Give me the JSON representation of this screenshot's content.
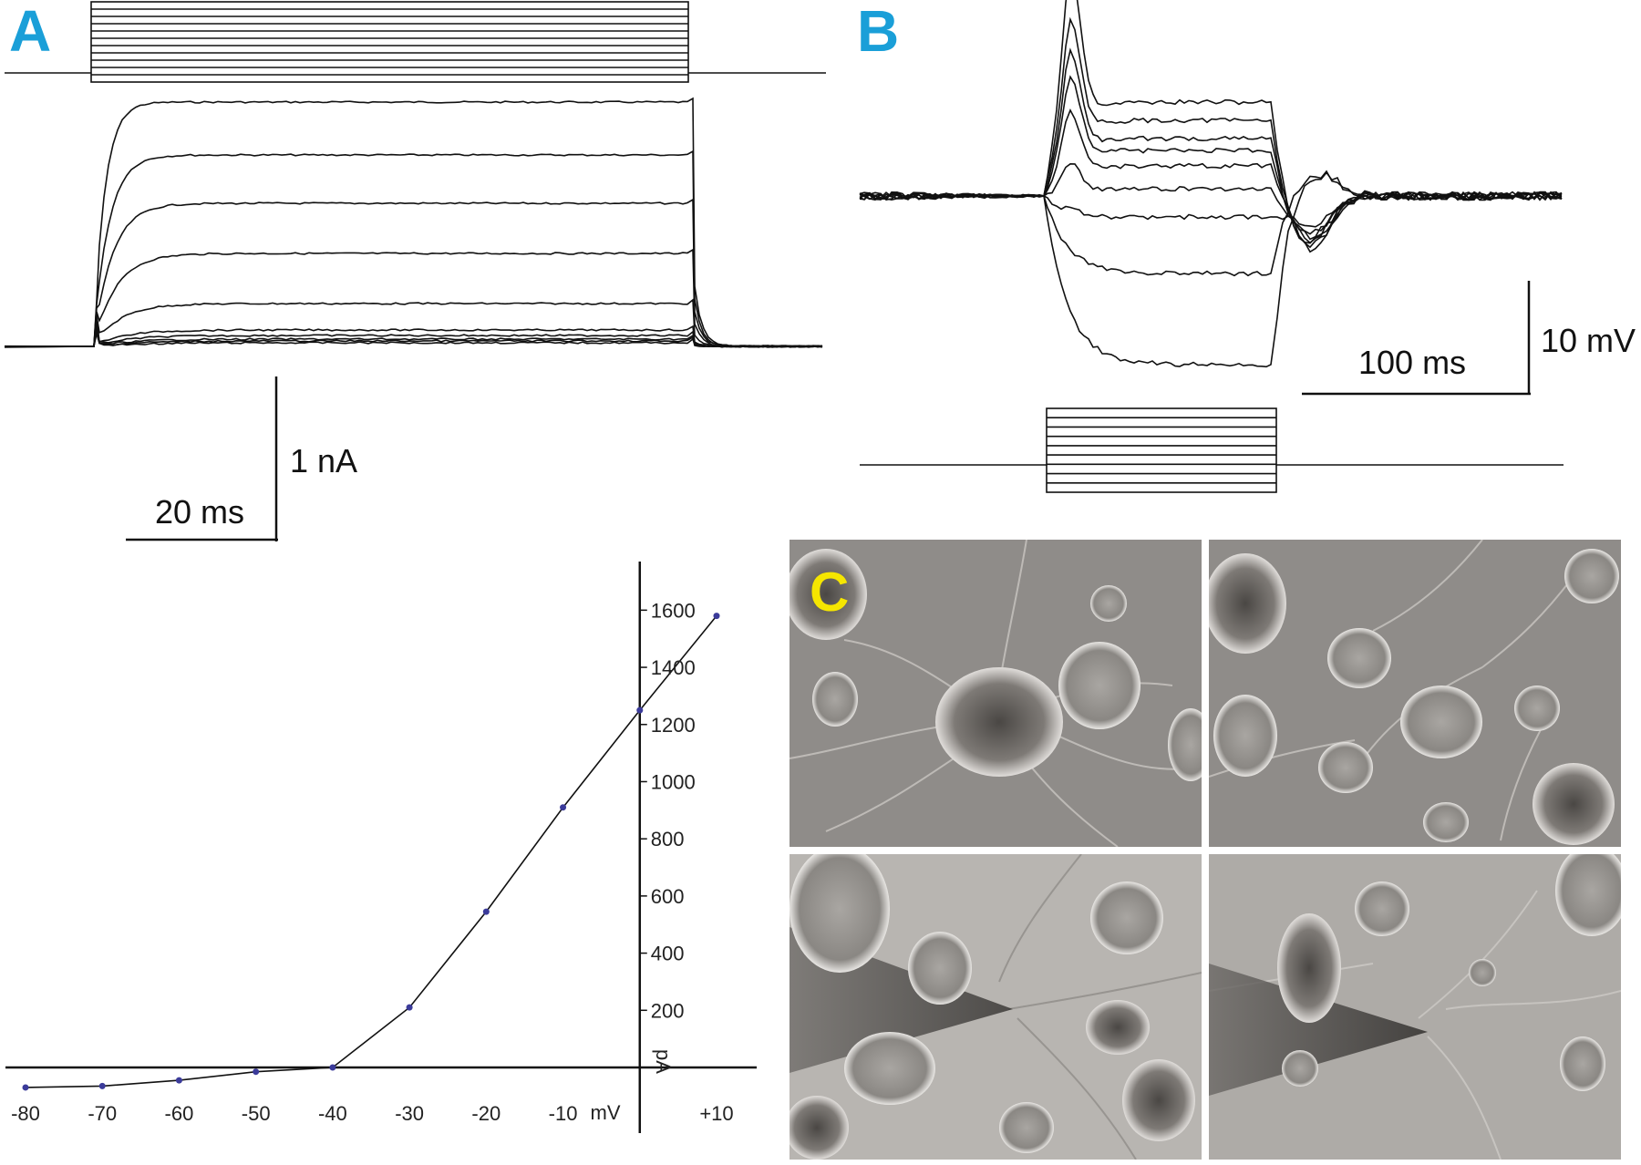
{
  "panels": {
    "a_label": "A",
    "b_label": "B",
    "c_label": "C",
    "label_color": "#1a9fd8",
    "c_label_color": "#f5e600"
  },
  "panel_a": {
    "scale_current": "1 nA",
    "scale_time": "20 ms",
    "step_count": 11,
    "steady_levels_px_note": "traces: 5 clearly separated outward currents plus several near-baseline traces"
  },
  "panel_b": {
    "scale_time": "100 ms",
    "scale_voltage": "10 mV",
    "step_count": 9
  },
  "panel_c": {
    "images": [
      "micrograph-top-left",
      "micrograph-top-right",
      "micrograph-bottom-left",
      "micrograph-bottom-right"
    ]
  },
  "chart_data": {
    "type": "line",
    "x_unit_label": "mV",
    "y_unit_label": "pA",
    "x_tick_labels": [
      "-80",
      "-70",
      "-60",
      "-50",
      "-40",
      "-30",
      "-20",
      "-10",
      "+10"
    ],
    "y_tick_labels": [
      "200",
      "400",
      "600",
      "800",
      "1000",
      "1200",
      "1400",
      "1600"
    ],
    "x": [
      -80,
      -70,
      -60,
      -50,
      -40,
      -30,
      -20,
      -10,
      0,
      10
    ],
    "y": [
      -70,
      -65,
      -45,
      -15,
      0,
      210,
      545,
      910,
      1250,
      1580
    ],
    "xlim": [
      -80,
      10
    ],
    "ylim": [
      0,
      1700
    ],
    "marker_color": "#3b3b9a",
    "line_color": "#111111"
  }
}
